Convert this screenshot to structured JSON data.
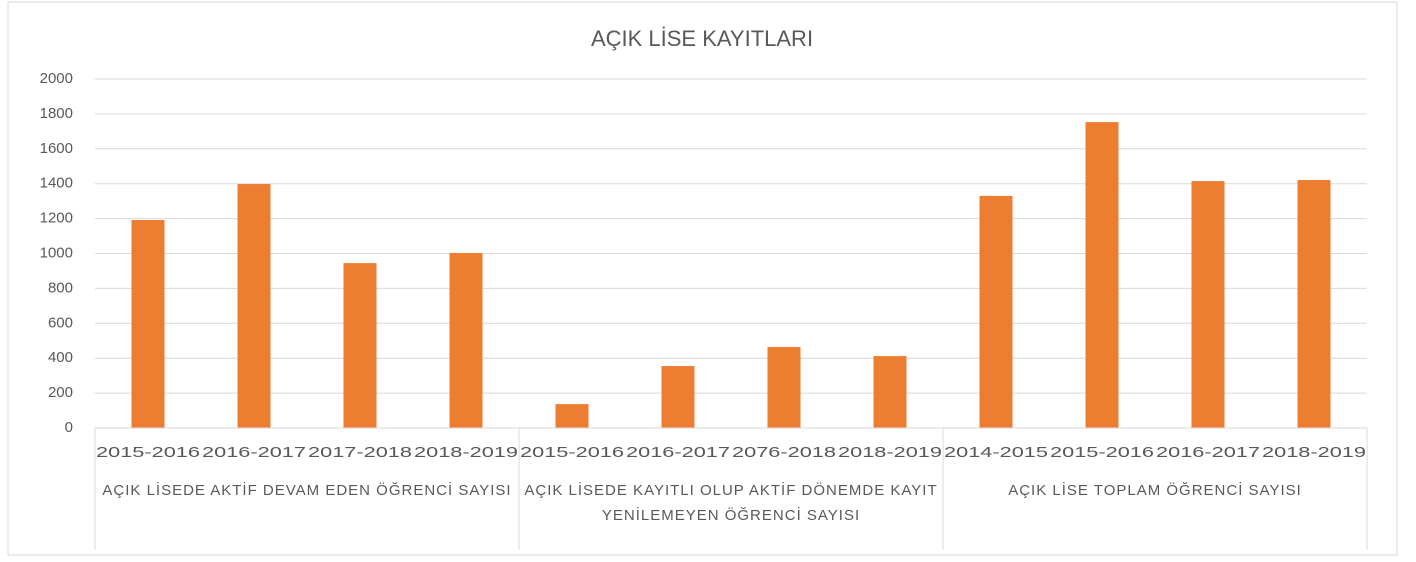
{
  "chart_data": {
    "type": "bar",
    "title": "AÇIK LİSE KAYITLARI",
    "categories": [
      "2015-2016",
      "2016-2017",
      "2017-2018",
      "2018-2019",
      "2015-2016",
      "2016-2017",
      "2076-2018",
      "2018-2019",
      "2014-2015",
      "2015-2016",
      "2016-2017",
      "2018-2019"
    ],
    "groups": [
      "AÇIK LİSEDE AKTİF DEVAM EDEN ÖĞRENCİ SAYISI",
      "AÇIK LİSEDE KAYITLI OLUP AKTİF DÖNEMDE KAYIT YENİLEMEYEN ÖĞRENCİ SAYISI",
      "AÇIK LİSE TOPLAM ÖĞRENCİ SAYISI"
    ],
    "values": [
      1192,
      1398,
      945,
      1003,
      137,
      355,
      464,
      412,
      1330,
      1753,
      1415,
      1421
    ],
    "color": "#ed7d31",
    "ylim": [
      0,
      2000
    ],
    "yticks": [
      0,
      200,
      400,
      600,
      800,
      1000,
      1200,
      1400,
      1600,
      1800,
      2000
    ],
    "grid": true
  }
}
